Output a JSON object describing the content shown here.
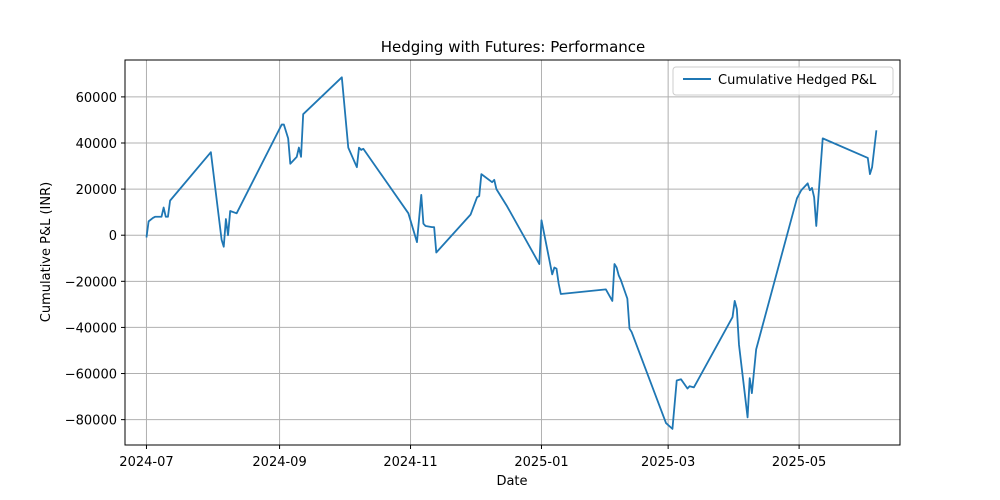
{
  "chart_data": {
    "type": "line",
    "title": "Hedging with Futures: Performance",
    "xlabel": "Date",
    "ylabel": "Cumulative P&L (INR)",
    "grid": true,
    "legend_position": "top-right",
    "xlim": [
      "2024-06-21",
      "2025-06-17"
    ],
    "ylim": [
      -91000,
      76000
    ],
    "x_ticks": [
      {
        "date": "2024-07-01",
        "label": "2024-07"
      },
      {
        "date": "2024-09-01",
        "label": "2024-09"
      },
      {
        "date": "2024-11-01",
        "label": "2024-11"
      },
      {
        "date": "2025-01-01",
        "label": "2025-01"
      },
      {
        "date": "2025-03-01",
        "label": "2025-03"
      },
      {
        "date": "2025-05-01",
        "label": "2025-05"
      }
    ],
    "y_ticks": [
      {
        "value": 60000,
        "label": "60000"
      },
      {
        "value": 40000,
        "label": "40000"
      },
      {
        "value": 20000,
        "label": "20000"
      },
      {
        "value": 0,
        "label": "0"
      },
      {
        "value": -20000,
        "label": "−20000"
      },
      {
        "value": -40000,
        "label": "−40000"
      },
      {
        "value": -60000,
        "label": "−60000"
      },
      {
        "value": -80000,
        "label": "−80000"
      }
    ],
    "series": [
      {
        "name": "Cumulative Hedged P&L",
        "color": "#1f77b4",
        "points": [
          [
            "2024-07-01",
            -1000
          ],
          [
            "2024-07-02",
            6000
          ],
          [
            "2024-07-04",
            7500
          ],
          [
            "2024-07-05",
            8000
          ],
          [
            "2024-07-08",
            8000
          ],
          [
            "2024-07-09",
            12000
          ],
          [
            "2024-07-10",
            8000
          ],
          [
            "2024-07-11",
            8000
          ],
          [
            "2024-07-12",
            15000
          ],
          [
            "2024-07-31",
            36000
          ],
          [
            "2024-08-05",
            -2000
          ],
          [
            "2024-08-06",
            -5000
          ],
          [
            "2024-08-07",
            7000
          ],
          [
            "2024-08-08",
            0
          ],
          [
            "2024-08-09",
            10500
          ],
          [
            "2024-08-12",
            9500
          ],
          [
            "2024-09-02",
            48000
          ],
          [
            "2024-09-03",
            48000
          ],
          [
            "2024-09-05",
            42000
          ],
          [
            "2024-09-06",
            31000
          ],
          [
            "2024-09-09",
            34000
          ],
          [
            "2024-09-10",
            38000
          ],
          [
            "2024-09-11",
            34000
          ],
          [
            "2024-09-12",
            52500
          ],
          [
            "2024-09-30",
            68500
          ],
          [
            "2024-10-03",
            38000
          ],
          [
            "2024-10-07",
            29500
          ],
          [
            "2024-10-08",
            38000
          ],
          [
            "2024-10-09",
            37000
          ],
          [
            "2024-10-10",
            37500
          ],
          [
            "2024-10-31",
            9500
          ],
          [
            "2024-11-04",
            -3000
          ],
          [
            "2024-11-06",
            17500
          ],
          [
            "2024-11-07",
            5000
          ],
          [
            "2024-11-08",
            4000
          ],
          [
            "2024-11-11",
            3500
          ],
          [
            "2024-11-12",
            3500
          ],
          [
            "2024-11-13",
            -7500
          ],
          [
            "2024-11-29",
            9000
          ],
          [
            "2024-12-02",
            16500
          ],
          [
            "2024-12-03",
            17000
          ],
          [
            "2024-12-04",
            26500
          ],
          [
            "2024-12-09",
            23000
          ],
          [
            "2024-12-10",
            24000
          ],
          [
            "2024-12-11",
            20000
          ],
          [
            "2024-12-16",
            12500
          ],
          [
            "2024-12-31",
            -12500
          ],
          [
            "2025-01-01",
            6500
          ],
          [
            "2025-01-06",
            -17000
          ],
          [
            "2025-01-07",
            -14000
          ],
          [
            "2025-01-08",
            -14500
          ],
          [
            "2025-01-09",
            -21000
          ],
          [
            "2025-01-10",
            -25500
          ],
          [
            "2025-01-31",
            -23500
          ],
          [
            "2025-02-03",
            -28500
          ],
          [
            "2025-02-04",
            -12500
          ],
          [
            "2025-02-05",
            -14000
          ],
          [
            "2025-02-06",
            -17500
          ],
          [
            "2025-02-07",
            -19500
          ],
          [
            "2025-02-10",
            -27500
          ],
          [
            "2025-02-11",
            -40500
          ],
          [
            "2025-02-12",
            -42000
          ],
          [
            "2025-02-28",
            -81500
          ],
          [
            "2025-03-03",
            -84000
          ],
          [
            "2025-03-05",
            -63000
          ],
          [
            "2025-03-07",
            -62500
          ],
          [
            "2025-03-10",
            -66500
          ],
          [
            "2025-03-11",
            -65500
          ],
          [
            "2025-03-13",
            -66000
          ],
          [
            "2025-03-31",
            -35500
          ],
          [
            "2025-04-01",
            -28500
          ],
          [
            "2025-04-02",
            -32000
          ],
          [
            "2025-04-03",
            -47500
          ],
          [
            "2025-04-07",
            -79000
          ],
          [
            "2025-04-08",
            -62000
          ],
          [
            "2025-04-09",
            -68500
          ],
          [
            "2025-04-11",
            -49500
          ],
          [
            "2025-04-30",
            16000
          ],
          [
            "2025-05-02",
            19500
          ],
          [
            "2025-05-05",
            22500
          ],
          [
            "2025-05-06",
            19500
          ],
          [
            "2025-05-07",
            20500
          ],
          [
            "2025-05-08",
            16500
          ],
          [
            "2025-05-09",
            4000
          ],
          [
            "2025-05-12",
            42000
          ],
          [
            "2025-06-02",
            33500
          ],
          [
            "2025-06-03",
            26500
          ],
          [
            "2025-06-04",
            29500
          ],
          [
            "2025-06-06",
            45500
          ]
        ]
      }
    ]
  }
}
